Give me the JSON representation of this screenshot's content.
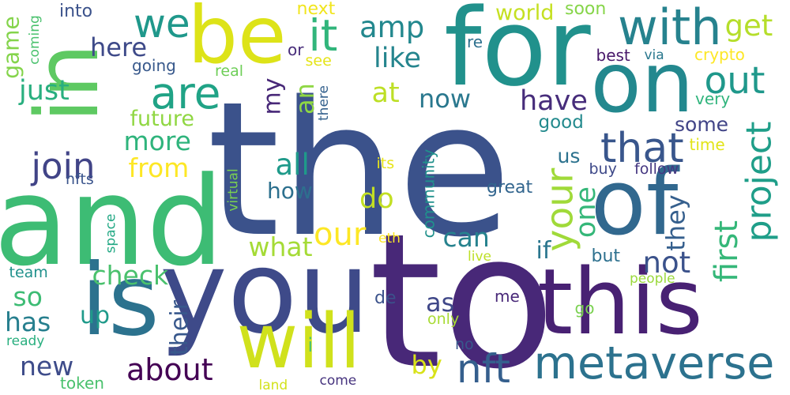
{
  "words": [
    {
      "text": "the",
      "color": "#3b528b",
      "vertical": false
    },
    {
      "text": "to",
      "color": "#482878",
      "vertical": false
    },
    {
      "text": "and",
      "color": "#3dbc74",
      "vertical": false
    },
    {
      "text": "for",
      "color": "#21918c",
      "vertical": false
    },
    {
      "text": "you",
      "color": "#3e4a89",
      "vertical": false
    },
    {
      "text": "is",
      "color": "#2c728e",
      "vertical": false
    },
    {
      "text": "of",
      "color": "#31688e",
      "vertical": false
    },
    {
      "text": "this",
      "color": "#482173",
      "vertical": false
    },
    {
      "text": "in",
      "color": "#5ec962",
      "vertical": true
    },
    {
      "text": "on",
      "color": "#23888e",
      "vertical": false
    },
    {
      "text": "be",
      "color": "#dde318",
      "vertical": false
    },
    {
      "text": "will",
      "color": "#d0e11c",
      "vertical": false
    },
    {
      "text": "metaverse",
      "color": "#2c728e",
      "vertical": false
    },
    {
      "text": "with",
      "color": "#26828e",
      "vertical": false
    },
    {
      "text": "project",
      "color": "#1f9e89",
      "vertical": true
    },
    {
      "text": "are",
      "color": "#20a386",
      "vertical": false
    },
    {
      "text": "it",
      "color": "#31b57b",
      "vertical": false
    },
    {
      "text": "we",
      "color": "#1f988b",
      "vertical": false
    },
    {
      "text": "that",
      "color": "#39568c",
      "vertical": false
    },
    {
      "text": "your",
      "color": "#a0da39",
      "vertical": true
    },
    {
      "text": "nft",
      "color": "#355f8d",
      "vertical": false
    },
    {
      "text": "about",
      "color": "#440154",
      "vertical": false
    },
    {
      "text": "out",
      "color": "#1f988b",
      "vertical": false
    },
    {
      "text": "join",
      "color": "#414487",
      "vertical": false
    },
    {
      "text": "our",
      "color": "#fde725",
      "vertical": false
    },
    {
      "text": "first",
      "color": "#35b779",
      "vertical": true
    },
    {
      "text": "get",
      "color": "#b5de2b",
      "vertical": false
    },
    {
      "text": "amp",
      "color": "#23888e",
      "vertical": false
    },
    {
      "text": "here",
      "color": "#3e4a89",
      "vertical": false
    },
    {
      "text": "like",
      "color": "#25858e",
      "vertical": false
    },
    {
      "text": "my",
      "color": "#482878",
      "vertical": true
    },
    {
      "text": "at",
      "color": "#bddf26",
      "vertical": false
    },
    {
      "text": "an",
      "color": "#8fd744",
      "vertical": true
    },
    {
      "text": "now",
      "color": "#2a788e",
      "vertical": false
    },
    {
      "text": "have",
      "color": "#472d7b",
      "vertical": false
    },
    {
      "text": "just",
      "color": "#29af7f",
      "vertical": false
    },
    {
      "text": "game",
      "color": "#84d44b",
      "vertical": true
    },
    {
      "text": "more",
      "color": "#2fb47c",
      "vertical": false
    },
    {
      "text": "future",
      "color": "#90d743",
      "vertical": false
    },
    {
      "text": "from",
      "color": "#fde725",
      "vertical": false
    },
    {
      "text": "all",
      "color": "#1f9a8a",
      "vertical": false
    },
    {
      "text": "do",
      "color": "#c2df23",
      "vertical": false
    },
    {
      "text": "how",
      "color": "#2d708e",
      "vertical": false
    },
    {
      "text": "one",
      "color": "#35b779",
      "vertical": true
    },
    {
      "text": "can",
      "color": "#26828e",
      "vertical": false
    },
    {
      "text": "check",
      "color": "#4ac16d",
      "vertical": false
    },
    {
      "text": "what",
      "color": "#a5db36",
      "vertical": false
    },
    {
      "text": "if",
      "color": "#2a768e",
      "vertical": false
    },
    {
      "text": "not",
      "color": "#3b528b",
      "vertical": false
    },
    {
      "text": "they",
      "color": "#355f8d",
      "vertical": true
    },
    {
      "text": "so",
      "color": "#3dbc74",
      "vertical": false
    },
    {
      "text": "has",
      "color": "#277f8e",
      "vertical": false
    },
    {
      "text": "up",
      "color": "#1f9a8a",
      "vertical": false
    },
    {
      "text": "their",
      "color": "#38588c",
      "vertical": true
    },
    {
      "text": "by",
      "color": "#d8e219",
      "vertical": false
    },
    {
      "text": "as",
      "color": "#3f4788",
      "vertical": false
    },
    {
      "text": "new",
      "color": "#3e4c8a",
      "vertical": false
    },
    {
      "text": "world",
      "color": "#c5e021",
      "vertical": false
    },
    {
      "text": "soon",
      "color": "#86d549",
      "vertical": false
    },
    {
      "text": "into",
      "color": "#3b528b",
      "vertical": false
    },
    {
      "text": "next",
      "color": "#f1e51d",
      "vertical": false
    },
    {
      "text": "coming",
      "color": "#4ac16d",
      "vertical": true
    },
    {
      "text": "or",
      "color": "#472c7a",
      "vertical": false
    },
    {
      "text": "see",
      "color": "#e5e419",
      "vertical": false
    },
    {
      "text": "re",
      "color": "#2d708e",
      "vertical": false
    },
    {
      "text": "going",
      "color": "#38598c",
      "vertical": false
    },
    {
      "text": "real",
      "color": "#6ece58",
      "vertical": false
    },
    {
      "text": "there",
      "color": "#34618d",
      "vertical": true
    },
    {
      "text": "best",
      "color": "#48186a",
      "vertical": false
    },
    {
      "text": "via",
      "color": "#2a788e",
      "vertical": false
    },
    {
      "text": "crypto",
      "color": "#fde725",
      "vertical": false
    },
    {
      "text": "very",
      "color": "#2fb47c",
      "vertical": false
    },
    {
      "text": "good",
      "color": "#238a8d",
      "vertical": false
    },
    {
      "text": "some",
      "color": "#414487",
      "vertical": false
    },
    {
      "text": "time",
      "color": "#e2e418",
      "vertical": false
    },
    {
      "text": "us",
      "color": "#2c728e",
      "vertical": false
    },
    {
      "text": "buy",
      "color": "#3e4989",
      "vertical": false
    },
    {
      "text": "follow",
      "color": "#453781",
      "vertical": false
    },
    {
      "text": "its",
      "color": "#e7e419",
      "vertical": false
    },
    {
      "text": "community",
      "color": "#21918c",
      "vertical": true
    },
    {
      "text": "great",
      "color": "#32658e",
      "vertical": false
    },
    {
      "text": "nfts",
      "color": "#3a548c",
      "vertical": false
    },
    {
      "text": "virtual",
      "color": "#7ad151",
      "vertical": true
    },
    {
      "text": "space",
      "color": "#22a884",
      "vertical": true
    },
    {
      "text": "eth",
      "color": "#fde725",
      "vertical": false
    },
    {
      "text": "live",
      "color": "#bddf26",
      "vertical": false
    },
    {
      "text": "but",
      "color": "#2d708e",
      "vertical": false
    },
    {
      "text": "people",
      "color": "#9bd93c",
      "vertical": false
    },
    {
      "text": "team",
      "color": "#21918c",
      "vertical": false
    },
    {
      "text": "de",
      "color": "#3b528b",
      "vertical": false
    },
    {
      "text": "me",
      "color": "#482878",
      "vertical": false
    },
    {
      "text": "go",
      "color": "#7ad151",
      "vertical": false
    },
    {
      "text": "only",
      "color": "#a8db34",
      "vertical": false
    },
    {
      "text": "i",
      "color": "#4ac16d",
      "vertical": false
    },
    {
      "text": "ready",
      "color": "#29af7f",
      "vertical": false
    },
    {
      "text": "no",
      "color": "#38588c",
      "vertical": false
    },
    {
      "text": "token",
      "color": "#4ac16d",
      "vertical": false
    },
    {
      "text": "land",
      "color": "#d2e21b",
      "vertical": false
    },
    {
      "text": "come",
      "color": "#46337e",
      "vertical": false
    }
  ]
}
